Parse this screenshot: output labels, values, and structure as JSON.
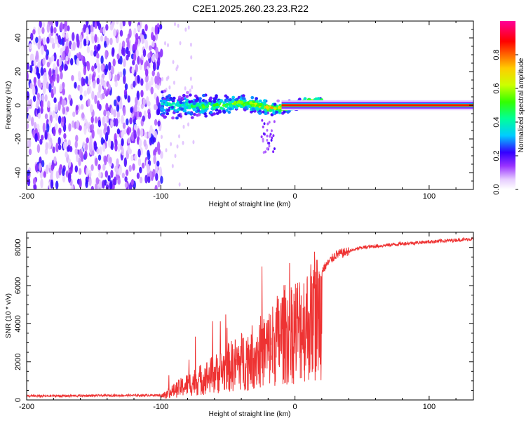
{
  "title": "C2E1.2025.260.23.23.R22",
  "chart_data": [
    {
      "type": "heatmap",
      "name": "spectrogram",
      "xlabel": "Height of straight line (km)",
      "ylabel": "Frequency (Hz)",
      "xlim": [
        -200,
        133
      ],
      "ylim": [
        -50,
        50
      ],
      "xticks": [
        -200,
        -100,
        0,
        100
      ],
      "yticks": [
        -40,
        -20,
        0,
        20,
        40
      ],
      "xtick_labels": [
        "-200",
        "-100",
        "0",
        "100"
      ],
      "ytick_labels": [
        "-40",
        "-20",
        "0",
        "20",
        "40"
      ],
      "colorbar": {
        "label": "Normalized spectral amplitude",
        "range": [
          0,
          1
        ],
        "ticks": [
          0.0,
          0.2,
          0.4,
          0.6,
          0.8
        ],
        "tick_labels": [
          "0.0",
          "0.2",
          "0.4",
          "0.6",
          "0.8"
        ]
      },
      "regions": [
        {
          "x_range": [
            -200,
            -100
          ],
          "description": "broadband noise, amplitude ~0.1-0.2"
        },
        {
          "x_range": [
            -100,
            20
          ],
          "description": "signal near 0 Hz with spread, amplitude ~0.3-0.9"
        },
        {
          "x_range": [
            20,
            133
          ],
          "description": "narrow line at 0 Hz, amplitude ~1.0"
        }
      ]
    },
    {
      "type": "line",
      "name": "snr",
      "xlabel": "Height of straight line (km)",
      "ylabel": "SNR (10 * v/v)",
      "xlim": [
        -200,
        133
      ],
      "ylim": [
        0,
        8800
      ],
      "xticks": [
        -200,
        -100,
        0,
        100
      ],
      "yticks": [
        0,
        2000,
        4000,
        6000,
        8000
      ],
      "xtick_labels": [
        "-200",
        "-100",
        "0",
        "100"
      ],
      "ytick_labels": [
        "0",
        "2000",
        "4000",
        "6000",
        "8000"
      ],
      "color": "#ee3333",
      "series": [
        {
          "name": "SNR envelope",
          "x": [
            -200,
            -100,
            -95,
            -80,
            -60,
            -40,
            -20,
            -10,
            0,
            10,
            20,
            30,
            50,
            80,
            100,
            133
          ],
          "values": [
            200,
            250,
            500,
            1200,
            2000,
            3000,
            4000,
            5000,
            5500,
            6000,
            6800,
            7600,
            8000,
            8200,
            8300,
            8450
          ]
        }
      ]
    }
  ]
}
